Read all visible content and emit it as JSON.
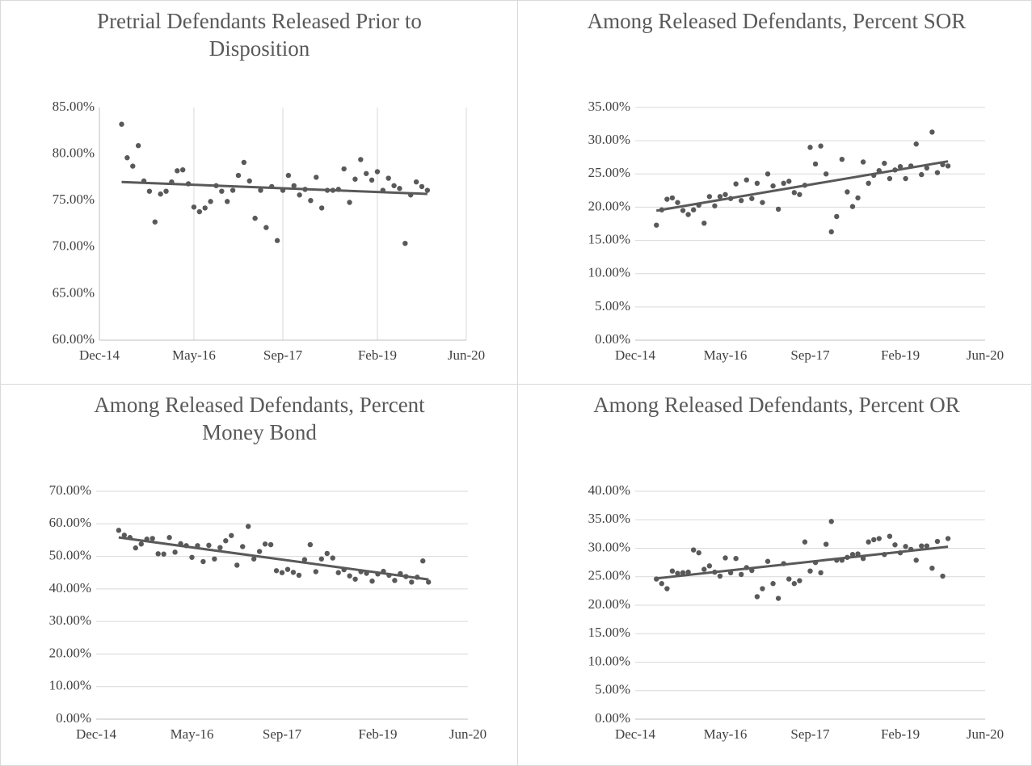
{
  "chart_data": [
    {
      "type": "scatter",
      "title": "Pretrial Defendants Released Prior to Disposition",
      "color": "#595959",
      "trendline": "linear",
      "grid": "x",
      "x": [
        "Apr-15",
        "May-15",
        "Jun-15",
        "Jul-15",
        "Aug-15",
        "Sep-15",
        "Oct-15",
        "Nov-15",
        "Dec-15",
        "Jan-16",
        "Feb-16",
        "Mar-16",
        "Apr-16",
        "May-16",
        "Jun-16",
        "Jul-16",
        "Aug-16",
        "Sep-16",
        "Oct-16",
        "Nov-16",
        "Dec-16",
        "Jan-17",
        "Feb-17",
        "Mar-17",
        "Apr-17",
        "May-17",
        "Jun-17",
        "Jul-17",
        "Aug-17",
        "Sep-17",
        "Oct-17",
        "Nov-17",
        "Dec-17",
        "Jan-18",
        "Feb-18",
        "Mar-18",
        "Apr-18",
        "May-18",
        "Jun-18",
        "Jul-18",
        "Aug-18",
        "Sep-18",
        "Oct-18",
        "Nov-18",
        "Dec-18",
        "Jan-19",
        "Feb-19",
        "Mar-19",
        "Apr-19",
        "May-19",
        "Jun-19",
        "Jul-19",
        "Aug-19",
        "Sep-19",
        "Oct-19",
        "Nov-19"
      ],
      "values": [
        83.2,
        79.6,
        78.7,
        80.9,
        77.1,
        76.0,
        72.7,
        75.7,
        76.0,
        77.0,
        78.2,
        78.3,
        76.8,
        74.3,
        73.8,
        74.2,
        74.9,
        76.6,
        76.0,
        74.9,
        76.1,
        77.7,
        79.1,
        77.1,
        73.1,
        76.1,
        72.1,
        76.5,
        70.7,
        76.1,
        77.7,
        76.6,
        75.6,
        76.2,
        75.0,
        77.5,
        74.2,
        76.1,
        76.1,
        76.2,
        78.4,
        74.8,
        77.3,
        79.4,
        77.9,
        77.2,
        78.1,
        76.1,
        77.4,
        76.6,
        76.3,
        70.4,
        75.6,
        77.0,
        76.5,
        76.1
      ],
      "xlim": [
        "Dec-14",
        "Jun-20"
      ],
      "xticks": [
        "Dec-14",
        "May-16",
        "Sep-17",
        "Feb-19",
        "Jun-20"
      ],
      "ylim": [
        60,
        85
      ],
      "yticks": [
        {
          "value": 60,
          "label": "60.00%"
        },
        {
          "value": 65,
          "label": "65.00%"
        },
        {
          "value": 70,
          "label": "70.00%"
        },
        {
          "value": 75,
          "label": "75.00%"
        },
        {
          "value": 80,
          "label": "80.00%"
        },
        {
          "value": 85,
          "label": "85.00%"
        }
      ]
    },
    {
      "type": "scatter",
      "title": "Among Released Defendants, Percent SOR",
      "color": "#595959",
      "trendline": "linear",
      "grid": "y",
      "x": [
        "Apr-15",
        "May-15",
        "Jun-15",
        "Jul-15",
        "Aug-15",
        "Sep-15",
        "Oct-15",
        "Nov-15",
        "Dec-15",
        "Jan-16",
        "Feb-16",
        "Mar-16",
        "Apr-16",
        "May-16",
        "Jun-16",
        "Jul-16",
        "Aug-16",
        "Sep-16",
        "Oct-16",
        "Nov-16",
        "Dec-16",
        "Jan-17",
        "Feb-17",
        "Mar-17",
        "Apr-17",
        "May-17",
        "Jun-17",
        "Jul-17",
        "Aug-17",
        "Sep-17",
        "Oct-17",
        "Nov-17",
        "Dec-17",
        "Jan-18",
        "Feb-18",
        "Mar-18",
        "Apr-18",
        "May-18",
        "Jun-18",
        "Jul-18",
        "Aug-18",
        "Sep-18",
        "Oct-18",
        "Nov-18",
        "Dec-18",
        "Jan-19",
        "Feb-19",
        "Mar-19",
        "Apr-19",
        "May-19",
        "Jun-19",
        "Jul-19",
        "Aug-19",
        "Sep-19",
        "Oct-19",
        "Nov-19"
      ],
      "values": [
        17.3,
        19.6,
        21.2,
        21.4,
        20.7,
        19.5,
        18.9,
        19.6,
        20.3,
        17.6,
        21.6,
        20.2,
        21.6,
        21.9,
        21.3,
        23.5,
        21.0,
        24.1,
        21.3,
        23.6,
        20.7,
        25.0,
        23.2,
        19.7,
        23.6,
        23.9,
        22.2,
        21.9,
        23.3,
        29.0,
        26.5,
        29.2,
        25.0,
        16.3,
        18.6,
        27.2,
        22.3,
        20.1,
        21.4,
        26.8,
        23.6,
        24.8,
        25.5,
        26.6,
        24.3,
        25.6,
        26.1,
        24.3,
        26.2,
        29.5,
        24.9,
        25.9,
        31.3,
        25.2,
        26.4,
        26.2
      ],
      "xlim": [
        "Dec-14",
        "Jun-20"
      ],
      "xticks": [
        "Dec-14",
        "May-16",
        "Sep-17",
        "Feb-19",
        "Jun-20"
      ],
      "ylim": [
        0,
        35
      ],
      "yticks": [
        {
          "value": 0,
          "label": "0.00%"
        },
        {
          "value": 5,
          "label": "5.00%"
        },
        {
          "value": 10,
          "label": "10.00%"
        },
        {
          "value": 15,
          "label": "15.00%"
        },
        {
          "value": 20,
          "label": "20.00%"
        },
        {
          "value": 25,
          "label": "25.00%"
        },
        {
          "value": 30,
          "label": "30.00%"
        },
        {
          "value": 35,
          "label": "35.00%"
        }
      ]
    },
    {
      "type": "scatter",
      "title": "Among Released Defendants, Percent Money Bond",
      "color": "#595959",
      "trendline": "linear",
      "grid": "y",
      "x": [
        "Apr-15",
        "May-15",
        "Jun-15",
        "Jul-15",
        "Aug-15",
        "Sep-15",
        "Oct-15",
        "Nov-15",
        "Dec-15",
        "Jan-16",
        "Feb-16",
        "Mar-16",
        "Apr-16",
        "May-16",
        "Jun-16",
        "Jul-16",
        "Aug-16",
        "Sep-16",
        "Oct-16",
        "Nov-16",
        "Dec-16",
        "Jan-17",
        "Feb-17",
        "Mar-17",
        "Apr-17",
        "May-17",
        "Jun-17",
        "Jul-17",
        "Aug-17",
        "Sep-17",
        "Oct-17",
        "Nov-17",
        "Dec-17",
        "Jan-18",
        "Feb-18",
        "Mar-18",
        "Apr-18",
        "May-18",
        "Jun-18",
        "Jul-18",
        "Aug-18",
        "Sep-18",
        "Oct-18",
        "Nov-18",
        "Dec-18",
        "Jan-19",
        "Feb-19",
        "Mar-19",
        "Apr-19",
        "May-19",
        "Jun-19",
        "Jul-19",
        "Aug-19",
        "Sep-19",
        "Oct-19",
        "Nov-19"
      ],
      "values": [
        58.0,
        56.5,
        55.8,
        52.6,
        53.8,
        55.3,
        55.5,
        50.8,
        50.7,
        55.8,
        51.3,
        53.9,
        53.3,
        49.7,
        53.3,
        48.4,
        53.4,
        49.2,
        52.7,
        54.8,
        56.4,
        47.3,
        53.0,
        59.2,
        49.2,
        51.5,
        53.8,
        53.6,
        45.6,
        45.0,
        46.0,
        45.1,
        44.2,
        49.0,
        53.6,
        45.3,
        49.2,
        50.9,
        49.5,
        45.0,
        45.9,
        44.0,
        43.0,
        45.3,
        44.8,
        42.4,
        44.6,
        45.4,
        44.2,
        42.6,
        44.7,
        43.8,
        42.1,
        43.6,
        48.6,
        42.1
      ],
      "xlim": [
        "Dec-14",
        "Jun-20"
      ],
      "xticks": [
        "Dec-14",
        "May-16",
        "Sep-17",
        "Feb-19",
        "Jun-20"
      ],
      "ylim": [
        0,
        70
      ],
      "yticks": [
        {
          "value": 0,
          "label": "0.00%"
        },
        {
          "value": 10,
          "label": "10.00%"
        },
        {
          "value": 20,
          "label": "20.00%"
        },
        {
          "value": 30,
          "label": "30.00%"
        },
        {
          "value": 40,
          "label": "40.00%"
        },
        {
          "value": 50,
          "label": "50.00%"
        },
        {
          "value": 60,
          "label": "60.00%"
        },
        {
          "value": 70,
          "label": "70.00%"
        }
      ]
    },
    {
      "type": "scatter",
      "title": "Among Released Defendants, Percent OR",
      "color": "#595959",
      "trendline": "linear",
      "grid": "y",
      "x": [
        "Apr-15",
        "May-15",
        "Jun-15",
        "Jul-15",
        "Aug-15",
        "Sep-15",
        "Oct-15",
        "Nov-15",
        "Dec-15",
        "Jan-16",
        "Feb-16",
        "Mar-16",
        "Apr-16",
        "May-16",
        "Jun-16",
        "Jul-16",
        "Aug-16",
        "Sep-16",
        "Oct-16",
        "Nov-16",
        "Dec-16",
        "Jan-17",
        "Feb-17",
        "Mar-17",
        "Apr-17",
        "May-17",
        "Jun-17",
        "Jul-17",
        "Aug-17",
        "Sep-17",
        "Oct-17",
        "Nov-17",
        "Dec-17",
        "Jan-18",
        "Feb-18",
        "Mar-18",
        "Apr-18",
        "May-18",
        "Jun-18",
        "Jul-18",
        "Aug-18",
        "Sep-18",
        "Oct-18",
        "Nov-18",
        "Dec-18",
        "Jan-19",
        "Feb-19",
        "Mar-19",
        "Apr-19",
        "May-19",
        "Jun-19",
        "Jul-19",
        "Aug-19",
        "Sep-19",
        "Oct-19",
        "Nov-19"
      ],
      "values": [
        24.6,
        23.8,
        22.9,
        26.0,
        25.6,
        25.7,
        25.8,
        29.7,
        29.2,
        26.3,
        26.9,
        25.8,
        25.1,
        28.3,
        25.7,
        28.2,
        25.4,
        26.6,
        26.1,
        21.5,
        22.9,
        27.7,
        23.8,
        21.2,
        27.3,
        24.6,
        23.8,
        24.3,
        31.1,
        26.0,
        27.5,
        25.7,
        30.7,
        34.7,
        27.9,
        27.9,
        28.4,
        28.9,
        29.0,
        28.2,
        31.1,
        31.5,
        31.7,
        28.9,
        32.1,
        30.6,
        29.2,
        30.3,
        29.8,
        27.9,
        30.4,
        30.4,
        26.5,
        31.2,
        25.1,
        31.7
      ],
      "xlim": [
        "Dec-14",
        "Jun-20"
      ],
      "xticks": [
        "Dec-14",
        "May-16",
        "Sep-17",
        "Feb-19",
        "Jun-20"
      ],
      "ylim": [
        0,
        40
      ],
      "yticks": [
        {
          "value": 0,
          "label": "0.00%"
        },
        {
          "value": 5,
          "label": "5.00%"
        },
        {
          "value": 10,
          "label": "10.00%"
        },
        {
          "value": 15,
          "label": "15.00%"
        },
        {
          "value": 20,
          "label": "20.00%"
        },
        {
          "value": 25,
          "label": "25.00%"
        },
        {
          "value": 30,
          "label": "30.00%"
        },
        {
          "value": 35,
          "label": "35.00%"
        },
        {
          "value": 40,
          "label": "40.00%"
        }
      ]
    }
  ]
}
